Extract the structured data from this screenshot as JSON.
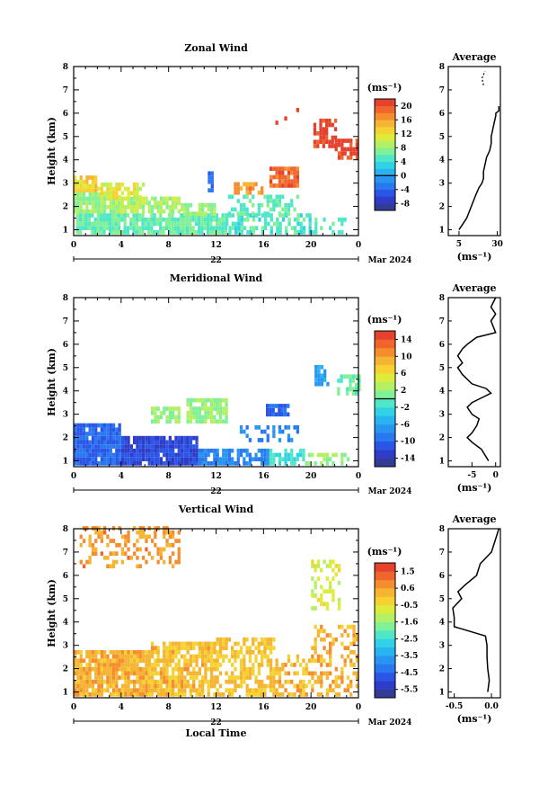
{
  "figure": {
    "date_label": "Mar 2024",
    "day_label": "22",
    "xlabel": "Local Time",
    "ylabel": "Height (km)",
    "unit": "(ms⁻¹)",
    "avg_title": "Average"
  },
  "colormap": [
    "#323c96",
    "#2e3cc8",
    "#2a55e6",
    "#2878f0",
    "#2896f0",
    "#28b4f0",
    "#32d2e6",
    "#50e6c8",
    "#82f096",
    "#b4f064",
    "#dceb3c",
    "#f5d232",
    "#f5b432",
    "#f58c2d",
    "#f0642d",
    "#e6412d"
  ],
  "chart_data": [
    {
      "type": "heatmap",
      "title": "Zonal Wind",
      "x_ticks": [
        "0",
        "4",
        "8",
        "12",
        "16",
        "20",
        "0"
      ],
      "y_ticks": [
        "1",
        "2",
        "3",
        "4",
        "5",
        "6",
        "7",
        "8"
      ],
      "xlim": [
        0,
        24
      ],
      "ylim": [
        0.75,
        8.0
      ],
      "cbar": {
        "ticks": [
          "20",
          "16",
          "12",
          "8",
          "4",
          "0",
          "-4",
          "-8"
        ],
        "range": [
          -10,
          22
        ],
        "zero_line": 0
      },
      "regions": [
        {
          "t": [
            0.2,
            12.8
          ],
          "h": [
            0.8,
            1.7
          ],
          "v": 6,
          "fill": 0.9
        },
        {
          "t": [
            12.8,
            20.5
          ],
          "h": [
            0.8,
            1.6
          ],
          "v": 5,
          "fill": 0.6
        },
        {
          "t": [
            20.5,
            23.0
          ],
          "h": [
            0.8,
            1.4
          ],
          "v": 5,
          "fill": 0.35
        },
        {
          "t": [
            0.0,
            3.5
          ],
          "h": [
            1.7,
            2.6
          ],
          "v": 8,
          "fill": 0.9
        },
        {
          "t": [
            3.5,
            9.0
          ],
          "h": [
            1.7,
            2.3
          ],
          "v": 9,
          "fill": 0.85
        },
        {
          "t": [
            9.0,
            12.0
          ],
          "h": [
            1.6,
            2.0
          ],
          "v": 8,
          "fill": 0.8
        },
        {
          "t": [
            0.0,
            2.0
          ],
          "h": [
            2.6,
            3.3
          ],
          "v": 13,
          "fill": 0.9
        },
        {
          "t": [
            2.0,
            6.0
          ],
          "h": [
            2.3,
            2.9
          ],
          "v": 11,
          "fill": 0.7
        },
        {
          "t": [
            13.0,
            19.0
          ],
          "h": [
            1.6,
            2.4
          ],
          "v": 6,
          "fill": 0.55
        },
        {
          "t": [
            13.5,
            16.0
          ],
          "h": [
            2.5,
            3.0
          ],
          "v": 17,
          "fill": 0.7
        },
        {
          "t": [
            16.5,
            18.8
          ],
          "h": [
            2.8,
            3.7
          ],
          "v": 19,
          "fill": 0.9
        },
        {
          "t": [
            11.3,
            11.8
          ],
          "h": [
            2.6,
            3.4
          ],
          "v": -4,
          "fill": 0.9
        },
        {
          "t": [
            20.2,
            22.0
          ],
          "h": [
            4.5,
            5.6
          ],
          "v": 21,
          "fill": 0.75
        },
        {
          "t": [
            22.0,
            24.0
          ],
          "h": [
            4.0,
            4.9
          ],
          "v": 21,
          "fill": 0.8
        },
        {
          "t": [
            17.0,
            19.0
          ],
          "h": [
            5.5,
            6.3
          ],
          "v": 21,
          "fill": 0.15
        }
      ],
      "profile": {
        "x_ticks": [
          "5",
          "30"
        ],
        "xlim": [
          -2,
          32
        ],
        "x_tick_values": [
          5,
          30
        ],
        "points": [
          [
            1.0,
            5
          ],
          [
            1.2,
            7
          ],
          [
            1.5,
            10
          ],
          [
            2.0,
            13
          ],
          [
            2.5,
            16
          ],
          [
            2.8,
            18
          ],
          [
            3.0,
            20
          ],
          [
            3.2,
            21
          ],
          [
            3.5,
            21
          ],
          [
            3.8,
            22
          ],
          [
            4.1,
            23
          ],
          [
            4.4,
            25
          ],
          [
            4.7,
            26
          ],
          [
            5.0,
            26
          ],
          [
            5.3,
            27
          ],
          [
            5.6,
            28
          ],
          [
            5.9,
            29
          ],
          [
            6.0,
            29
          ],
          [
            6.1,
            31
          ],
          [
            6.3,
            31
          ]
        ],
        "upper_points": [
          [
            7.2,
            21
          ],
          [
            7.5,
            20
          ],
          [
            7.8,
            22
          ]
        ]
      }
    },
    {
      "type": "heatmap",
      "title": "Meridional Wind",
      "x_ticks": [
        "0",
        "4",
        "8",
        "12",
        "16",
        "20",
        "0"
      ],
      "y_ticks": [
        "1",
        "2",
        "3",
        "4",
        "5",
        "6",
        "7",
        "8"
      ],
      "xlim": [
        0,
        24
      ],
      "ylim": [
        0.75,
        8.0
      ],
      "cbar": {
        "ticks": [
          "14",
          "10",
          "6",
          "2",
          "-2",
          "-6",
          "-10",
          "-14"
        ],
        "range": [
          -16,
          16
        ],
        "zero_line": 0
      },
      "regions": [
        {
          "t": [
            0.0,
            4.0
          ],
          "h": [
            0.8,
            2.5
          ],
          "v": -10,
          "fill": 0.95
        },
        {
          "t": [
            4.0,
            10.5
          ],
          "h": [
            0.8,
            2.0
          ],
          "v": -12,
          "fill": 0.95
        },
        {
          "t": [
            10.5,
            16.5
          ],
          "h": [
            0.8,
            1.5
          ],
          "v": -8,
          "fill": 0.75
        },
        {
          "t": [
            16.5,
            19.5
          ],
          "h": [
            0.8,
            1.5
          ],
          "v": -2,
          "fill": 0.6
        },
        {
          "t": [
            19.5,
            23.5
          ],
          "h": [
            0.8,
            1.3
          ],
          "v": 2,
          "fill": 0.35
        },
        {
          "t": [
            14.0,
            19.0
          ],
          "h": [
            1.8,
            2.4
          ],
          "v": -8,
          "fill": 0.35
        },
        {
          "t": [
            6.5,
            8.8
          ],
          "h": [
            2.6,
            3.3
          ],
          "v": 2,
          "fill": 0.8
        },
        {
          "t": [
            9.5,
            13.0
          ],
          "h": [
            2.6,
            3.6
          ],
          "v": 2,
          "fill": 0.85
        },
        {
          "t": [
            16.2,
            18.0
          ],
          "h": [
            2.9,
            3.4
          ],
          "v": -10,
          "fill": 0.85
        },
        {
          "t": [
            20.3,
            21.5
          ],
          "h": [
            4.2,
            5.0
          ],
          "v": -6,
          "fill": 0.8
        },
        {
          "t": [
            22.2,
            24.0
          ],
          "h": [
            3.8,
            4.6
          ],
          "v": 0,
          "fill": 0.6
        }
      ],
      "profile": {
        "x_ticks": [
          "-5",
          "0"
        ],
        "xlim": [
          -10,
          1
        ],
        "x_tick_values": [
          -5,
          0
        ],
        "points": [
          [
            1.0,
            -1.5
          ],
          [
            1.5,
            -3
          ],
          [
            1.8,
            -5
          ],
          [
            2.0,
            -6
          ],
          [
            2.2,
            -5
          ],
          [
            2.5,
            -4
          ],
          [
            2.8,
            -3.5
          ],
          [
            3.0,
            -5
          ],
          [
            3.3,
            -6
          ],
          [
            3.5,
            -5
          ],
          [
            3.7,
            -3
          ],
          [
            3.9,
            -1
          ],
          [
            4.1,
            -2
          ],
          [
            4.3,
            -5
          ],
          [
            4.7,
            -7
          ],
          [
            5.0,
            -8
          ],
          [
            5.2,
            -7
          ],
          [
            5.5,
            -8
          ],
          [
            5.8,
            -7
          ],
          [
            6.0,
            -6
          ],
          [
            6.3,
            -4
          ],
          [
            6.5,
            0
          ],
          [
            7.0,
            -1
          ],
          [
            7.3,
            0
          ],
          [
            7.6,
            -1
          ],
          [
            8.0,
            0
          ]
        ]
      }
    },
    {
      "type": "heatmap",
      "title": "Vertical Wind",
      "x_ticks": [
        "0",
        "4",
        "8",
        "12",
        "16",
        "20",
        "0"
      ],
      "y_ticks": [
        "1",
        "2",
        "3",
        "4",
        "5",
        "6",
        "7",
        "8"
      ],
      "xlim": [
        0,
        24
      ],
      "ylim": [
        0.75,
        8.0
      ],
      "cbar": {
        "ticks": [
          "1.5",
          "0.6",
          "-0.5",
          "-1.6",
          "-2.5",
          "-3.5",
          "-4.5",
          "-5.5"
        ],
        "range": [
          -6.0,
          2.0
        ],
        "zero_line": null
      },
      "regions": [
        {
          "t": [
            0.0,
            6.5
          ],
          "h": [
            0.8,
            2.7
          ],
          "v": 0.3,
          "fill": 0.9
        },
        {
          "t": [
            6.5,
            12.0
          ],
          "h": [
            0.8,
            3.0
          ],
          "v": 0.1,
          "fill": 0.8
        },
        {
          "t": [
            12.0,
            17.0
          ],
          "h": [
            0.8,
            3.2
          ],
          "v": 0.0,
          "fill": 0.6
        },
        {
          "t": [
            17.0,
            20.0
          ],
          "h": [
            0.8,
            2.5
          ],
          "v": 0.2,
          "fill": 0.5
        },
        {
          "t": [
            20.0,
            24.0
          ],
          "h": [
            0.8,
            3.8
          ],
          "v": 0.3,
          "fill": 0.45
        },
        {
          "t": [
            0.5,
            9.0
          ],
          "h": [
            6.3,
            8.0
          ],
          "v": 0.6,
          "fill": 0.35
        },
        {
          "t": [
            20.0,
            22.5
          ],
          "h": [
            4.5,
            6.5
          ],
          "v": -0.8,
          "fill": 0.4
        }
      ],
      "profile": {
        "x_ticks": [
          "-0.5",
          "0.0"
        ],
        "xlim": [
          -0.58,
          0.12
        ],
        "x_tick_values": [
          -0.5,
          0.0
        ],
        "points": [
          [
            1.0,
            -0.05
          ],
          [
            1.5,
            -0.03
          ],
          [
            2.0,
            -0.05
          ],
          [
            2.5,
            -0.06
          ],
          [
            3.0,
            -0.06
          ],
          [
            3.4,
            -0.08
          ],
          [
            3.8,
            -0.5
          ],
          [
            4.2,
            -0.5
          ],
          [
            4.6,
            -0.52
          ],
          [
            5.0,
            -0.4
          ],
          [
            5.3,
            -0.45
          ],
          [
            5.6,
            -0.35
          ],
          [
            6.0,
            -0.2
          ],
          [
            6.5,
            -0.15
          ],
          [
            7.0,
            0.0
          ],
          [
            7.5,
            0.05
          ],
          [
            8.0,
            0.1
          ]
        ]
      }
    }
  ]
}
